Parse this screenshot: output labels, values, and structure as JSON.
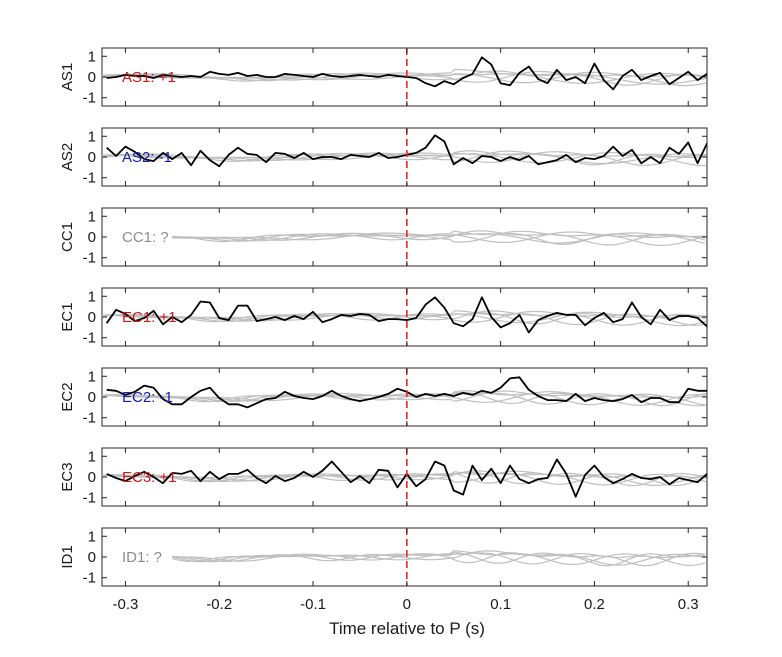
{
  "chart_data": {
    "type": "line",
    "xlabel": "Time relative to P (s)",
    "xlim": [
      -0.325,
      0.32
    ],
    "x_ticks": [
      -0.3,
      -0.2,
      -0.1,
      0,
      0.1,
      0.2,
      0.3
    ],
    "x_tick_labels": [
      "-0.3",
      "-0.2",
      "-0.1",
      "0",
      "0.1",
      "0.2",
      "0.3"
    ],
    "ylim": [
      -1.4,
      1.4
    ],
    "y_ticks": [
      1,
      0,
      -1
    ],
    "y_tick_labels": [
      "1",
      "0",
      "-1"
    ],
    "event_marker": {
      "x": 0,
      "style": "dashed",
      "color": "#e8281e"
    },
    "dt": 0.01,
    "t_start": -0.32,
    "background_color": "#bfbfbf",
    "panels": [
      {
        "ylabel": "AS1",
        "annotation": "AS1: +1",
        "annotation_color": "#c41a1a",
        "trace_color": "#000000",
        "values": [
          -0.05,
          0.0,
          0.1,
          0.05,
          0.05,
          -0.05,
          0.1,
          0.05,
          0.0,
          0.05,
          0.0,
          0.25,
          0.15,
          0.1,
          0.2,
          0.05,
          0.1,
          0.0,
          0.0,
          0.15,
          0.1,
          0.05,
          0.0,
          0.15,
          0.05,
          0.0,
          0.05,
          0.1,
          0.05,
          0.0,
          0.1,
          0.05,
          0.0,
          -0.05,
          -0.3,
          -0.45,
          -0.2,
          -0.35,
          -0.05,
          0.15,
          0.95,
          0.6,
          -0.3,
          -0.4,
          0.2,
          0.5,
          -0.1,
          -0.3,
          0.35,
          -0.15,
          0.0,
          -0.3,
          0.65,
          -0.15,
          -0.6,
          0.05,
          0.35,
          -0.15,
          0.05,
          0.2,
          -0.35,
          -0.05,
          0.25,
          -0.15,
          0.15,
          0.2
        ]
      },
      {
        "ylabel": "AS2",
        "annotation": "AS2: -1",
        "annotation_color": "#1a1aa8",
        "trace_color": "#000000",
        "values": [
          0.45,
          0.05,
          0.5,
          0.25,
          -0.1,
          -0.2,
          0.2,
          -0.1,
          0.2,
          -0.4,
          0.3,
          -0.15,
          -0.45,
          0.1,
          0.45,
          0.15,
          0.1,
          -0.25,
          0.2,
          0.15,
          -0.05,
          0.2,
          -0.1,
          0.0,
          0.0,
          -0.1,
          0.1,
          0.05,
          0.0,
          0.2,
          -0.05,
          0.0,
          0.1,
          0.2,
          0.45,
          1.05,
          0.75,
          -0.35,
          -0.05,
          -0.3,
          0.05,
          0.0,
          -0.2,
          0.0,
          -0.15,
          0.05,
          -0.35,
          -0.25,
          -0.15,
          0.1,
          -0.25,
          -0.05,
          -0.1,
          0.05,
          0.5,
          0.05,
          0.35,
          -0.3,
          0.0,
          -0.3,
          0.45,
          0.15,
          0.7,
          -0.3,
          0.65,
          0.3
        ]
      },
      {
        "ylabel": "CC1",
        "annotation": "CC1: ?",
        "annotation_color": "#8c8c8c",
        "trace_color": null,
        "values": []
      },
      {
        "ylabel": "EC1",
        "annotation": "EC1: +1",
        "annotation_color": "#c41a1a",
        "trace_color": "#000000",
        "values": [
          -0.3,
          0.35,
          0.15,
          -0.2,
          -0.05,
          0.3,
          -0.35,
          0.0,
          -0.25,
          0.1,
          0.75,
          0.7,
          -0.05,
          -0.15,
          0.55,
          0.55,
          -0.2,
          -0.1,
          0.0,
          -0.15,
          0.05,
          -0.1,
          0.25,
          -0.25,
          -0.1,
          0.1,
          0.05,
          0.15,
          0.1,
          -0.2,
          -0.1,
          -0.1,
          -0.15,
          -0.05,
          0.6,
          0.95,
          0.45,
          -0.3,
          -0.45,
          -0.1,
          0.95,
          0.0,
          -0.5,
          -0.3,
          0.1,
          -0.75,
          -0.15,
          0.05,
          0.2,
          0.1,
          0.1,
          -0.4,
          -0.05,
          0.2,
          -0.25,
          -0.1,
          0.7,
          0.0,
          -0.35,
          0.35,
          -0.15,
          0.05,
          0.05,
          -0.05,
          -0.45,
          -0.1
        ]
      },
      {
        "ylabel": "EC2",
        "annotation": "EC2: -1",
        "annotation_color": "#1a1aa8",
        "trace_color": "#000000",
        "values": [
          0.35,
          0.3,
          0.1,
          0.25,
          0.55,
          0.45,
          -0.1,
          -0.35,
          -0.35,
          0.0,
          0.3,
          0.45,
          -0.05,
          -0.35,
          -0.35,
          -0.5,
          -0.3,
          -0.1,
          -0.05,
          0.25,
          0.05,
          -0.05,
          -0.1,
          0.05,
          0.3,
          0.05,
          -0.1,
          -0.2,
          -0.1,
          0.0,
          0.15,
          0.4,
          0.25,
          0.0,
          0.15,
          0.05,
          0.15,
          0.05,
          0.2,
          0.1,
          0.3,
          0.2,
          0.45,
          0.9,
          0.95,
          0.35,
          0.05,
          -0.15,
          -0.15,
          -0.2,
          0.15,
          -0.2,
          -0.05,
          -0.15,
          -0.2,
          -0.1,
          0.1,
          -0.25,
          -0.05,
          -0.05,
          -0.25,
          -0.25,
          0.4,
          0.3,
          0.3,
          -0.1
        ]
      },
      {
        "ylabel": "EC3",
        "annotation": "EC3: +1",
        "annotation_color": "#c41a1a",
        "trace_color": "#000000",
        "values": [
          0.15,
          -0.05,
          -0.2,
          0.05,
          0.25,
          0.0,
          -0.3,
          0.2,
          0.15,
          0.3,
          -0.2,
          0.25,
          -0.1,
          0.15,
          0.15,
          0.35,
          -0.05,
          -0.3,
          0.05,
          -0.2,
          -0.05,
          0.25,
          0.0,
          0.3,
          0.75,
          0.25,
          -0.25,
          0.05,
          -0.3,
          0.35,
          0.3,
          -0.5,
          0.15,
          -0.45,
          -0.1,
          0.75,
          0.55,
          -0.65,
          -0.85,
          0.55,
          -0.15,
          0.4,
          -0.3,
          0.55,
          -0.1,
          -0.3,
          -0.1,
          -0.05,
          0.85,
          0.15,
          -0.95,
          0.1,
          0.55,
          0.0,
          -0.3,
          -0.1,
          0.15,
          -0.05,
          -0.1,
          0.0,
          -0.35,
          -0.05,
          -0.15,
          -0.25,
          0.15,
          0.05
        ]
      },
      {
        "ylabel": "ID1",
        "annotation": "ID1: ?",
        "annotation_color": "#8c8c8c",
        "trace_color": null,
        "values": []
      }
    ]
  }
}
